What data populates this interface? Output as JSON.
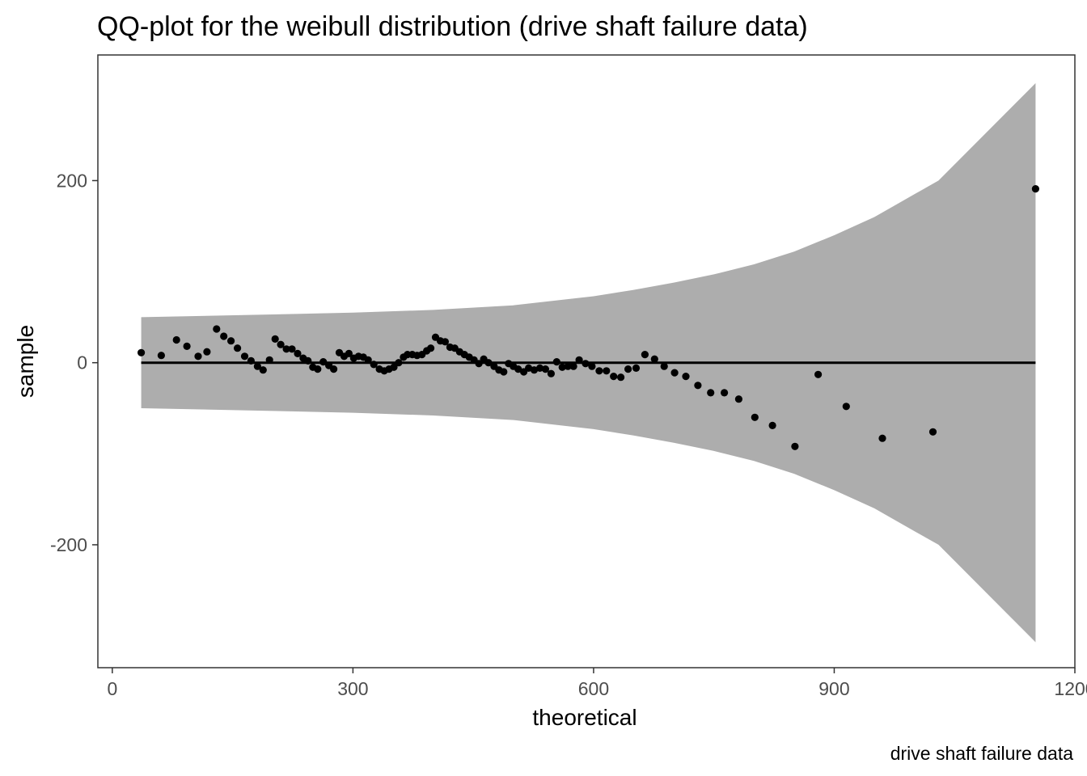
{
  "chart_data": {
    "type": "scatter",
    "title": "QQ-plot for the weibull distribution (drive shaft failure data)",
    "xlabel": "theoretical",
    "ylabel": "sample",
    "caption": "drive shaft failure data",
    "xlim": [
      -18,
      1200
    ],
    "ylim": [
      -335,
      338
    ],
    "x_ticks": [
      0,
      300,
      600,
      900,
      1200
    ],
    "x_tick_labels": [
      "0",
      "300",
      "600",
      "900",
      "1200"
    ],
    "y_ticks": [
      -200,
      0,
      200
    ],
    "y_tick_labels": [
      "-200",
      "0",
      "200"
    ],
    "grid": false,
    "reference_line": {
      "y": 0,
      "x_range": [
        36,
        1151
      ]
    },
    "confidence_band": {
      "x": [
        36,
        200,
        300,
        400,
        500,
        600,
        650,
        700,
        750,
        800,
        850,
        900,
        950,
        1000,
        1030,
        1151
      ],
      "upper": [
        50,
        53,
        55,
        58,
        63,
        73,
        80,
        88,
        97,
        108,
        122,
        140,
        160,
        185,
        200,
        307
      ],
      "lower": [
        -50,
        -53,
        -55,
        -58,
        -63,
        -73,
        -80,
        -88,
        -97,
        -108,
        -122,
        -140,
        -160,
        -185,
        -200,
        -307
      ]
    },
    "series": [
      {
        "points": [
          [
            36,
            11
          ],
          [
            61,
            8
          ],
          [
            80,
            25
          ],
          [
            93,
            18
          ],
          [
            107,
            7
          ],
          [
            118,
            12
          ],
          [
            130,
            37
          ],
          [
            139,
            29
          ],
          [
            148,
            24
          ],
          [
            156,
            16
          ],
          [
            165,
            7
          ],
          [
            173,
            2
          ],
          [
            181,
            -4
          ],
          [
            188,
            -8
          ],
          [
            196,
            3
          ],
          [
            203,
            26
          ],
          [
            210,
            20
          ],
          [
            217,
            15
          ],
          [
            224,
            15
          ],
          [
            231,
            10
          ],
          [
            238,
            5
          ],
          [
            244,
            2
          ],
          [
            250,
            -5
          ],
          [
            256,
            -7
          ],
          [
            263,
            1
          ],
          [
            270,
            -3
          ],
          [
            276,
            -7
          ],
          [
            283,
            11
          ],
          [
            289,
            7
          ],
          [
            295,
            10
          ],
          [
            301,
            5
          ],
          [
            307,
            7
          ],
          [
            313,
            6
          ],
          [
            319,
            3
          ],
          [
            326,
            -2
          ],
          [
            333,
            -7
          ],
          [
            339,
            -9
          ],
          [
            345,
            -7
          ],
          [
            351,
            -5
          ],
          [
            357,
            0
          ],
          [
            363,
            6
          ],
          [
            368,
            9
          ],
          [
            374,
            9
          ],
          [
            380,
            8
          ],
          [
            386,
            9
          ],
          [
            392,
            13
          ],
          [
            397,
            16
          ],
          [
            403,
            28
          ],
          [
            409,
            24
          ],
          [
            415,
            23
          ],
          [
            421,
            17
          ],
          [
            427,
            16
          ],
          [
            433,
            12
          ],
          [
            439,
            9
          ],
          [
            445,
            6
          ],
          [
            451,
            3
          ],
          [
            457,
            -1
          ],
          [
            463,
            4
          ],
          [
            469,
            0
          ],
          [
            476,
            -4
          ],
          [
            482,
            -8
          ],
          [
            488,
            -10
          ],
          [
            494,
            -1
          ],
          [
            500,
            -4
          ],
          [
            506,
            -7
          ],
          [
            513,
            -10
          ],
          [
            519,
            -6
          ],
          [
            526,
            -8
          ],
          [
            533,
            -6
          ],
          [
            540,
            -7
          ],
          [
            547,
            -12
          ],
          [
            554,
            1
          ],
          [
            561,
            -5
          ],
          [
            568,
            -4
          ],
          [
            575,
            -4
          ],
          [
            582,
            3
          ],
          [
            590,
            -1
          ],
          [
            598,
            -4
          ],
          [
            607,
            -9
          ],
          [
            616,
            -9
          ],
          [
            625,
            -15
          ],
          [
            634,
            -16
          ],
          [
            643,
            -7
          ],
          [
            653,
            -6
          ],
          [
            664,
            9
          ],
          [
            676,
            4
          ],
          [
            688,
            -4
          ],
          [
            701,
            -11
          ],
          [
            715,
            -15
          ],
          [
            730,
            -25
          ],
          [
            746,
            -33
          ],
          [
            763,
            -33
          ],
          [
            781,
            -40
          ],
          [
            801,
            -60
          ],
          [
            823,
            -69
          ],
          [
            851,
            -92
          ],
          [
            880,
            -13
          ],
          [
            915,
            -48
          ],
          [
            960,
            -83
          ],
          [
            1023,
            -76
          ],
          [
            1151,
            191
          ]
        ]
      }
    ],
    "colors": {
      "points": "#000000",
      "band": "#adadad",
      "line": "#000000",
      "panel_border": "#333333"
    }
  }
}
